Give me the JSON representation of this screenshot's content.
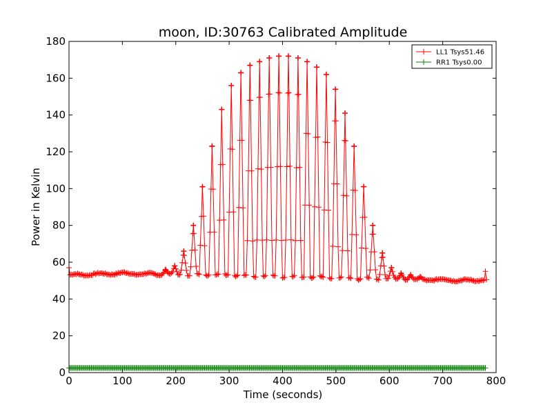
{
  "chart_data": {
    "type": "line",
    "title": "moon, ID:30763 Calibrated Amplitude",
    "xlabel": "Time (seconds)",
    "ylabel": "Power in Kelvin",
    "xlim": [
      0,
      800
    ],
    "ylim": [
      0,
      180
    ],
    "xticks": [
      0,
      100,
      200,
      300,
      400,
      500,
      600,
      700,
      800
    ],
    "yticks": [
      0,
      20,
      40,
      60,
      80,
      100,
      120,
      140,
      160,
      180
    ],
    "grid": false,
    "legend_position": "top-right",
    "marker": "+",
    "baseline_profile": [
      [
        0,
        53
      ],
      [
        50,
        53.5
      ],
      [
        100,
        54
      ],
      [
        150,
        53.5
      ],
      [
        200,
        53.5
      ],
      [
        250,
        53
      ],
      [
        300,
        53
      ],
      [
        350,
        52.5
      ],
      [
        400,
        52
      ],
      [
        450,
        52
      ],
      [
        500,
        51.5
      ],
      [
        550,
        51
      ],
      [
        600,
        51
      ],
      [
        650,
        50.5
      ],
      [
        700,
        50.5
      ],
      [
        750,
        50
      ],
      [
        780,
        50.5
      ]
    ],
    "scan_peaks": [
      {
        "t": 181,
        "peak": 56
      },
      {
        "t": 198,
        "peak": 58
      },
      {
        "t": 215,
        "peak": 66
      },
      {
        "t": 233,
        "peak": 80
      },
      {
        "t": 250,
        "peak": 101
      },
      {
        "t": 268,
        "peak": 123
      },
      {
        "t": 286,
        "peak": 143
      },
      {
        "t": 304,
        "peak": 156
      },
      {
        "t": 322,
        "peak": 163
      },
      {
        "t": 339,
        "peak": 167
      },
      {
        "t": 357,
        "peak": 169
      },
      {
        "t": 375,
        "peak": 171
      },
      {
        "t": 393,
        "peak": 172
      },
      {
        "t": 411,
        "peak": 172
      },
      {
        "t": 429,
        "peak": 171
      },
      {
        "t": 446,
        "peak": 169
      },
      {
        "t": 464,
        "peak": 166
      },
      {
        "t": 482,
        "peak": 162
      },
      {
        "t": 499,
        "peak": 154
      },
      {
        "t": 517,
        "peak": 141
      },
      {
        "t": 534,
        "peak": 123
      },
      {
        "t": 552,
        "peak": 101
      },
      {
        "t": 569,
        "peak": 80
      },
      {
        "t": 587,
        "peak": 65
      },
      {
        "t": 604,
        "peak": 57
      },
      {
        "t": 622,
        "peak": 54
      },
      {
        "t": 640,
        "peak": 53
      },
      {
        "t": 658,
        "peak": 52
      }
    ],
    "series": [
      {
        "name": "LL1 Tsys51.46",
        "color": "#ff0000",
        "start_value": 57,
        "end_value": 55
      },
      {
        "name": "RR1 Tsys0.00",
        "color": "#008000",
        "value": 2.5,
        "x_range": [
          0,
          780
        ]
      }
    ]
  }
}
